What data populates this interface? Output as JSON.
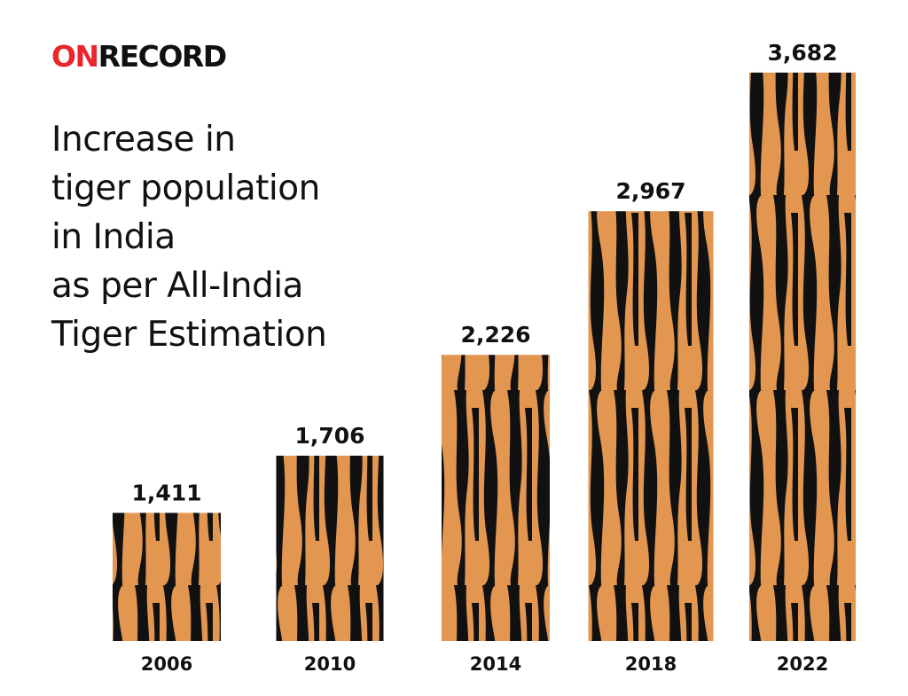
{
  "brand": {
    "accent": "ON",
    "rest": "RECORD"
  },
  "chart_data": {
    "type": "bar",
    "title": "Increase in\ntiger population\nin India\nas per All-India\nTiger Estimation",
    "categories": [
      "2006",
      "2010",
      "2014",
      "2018",
      "2022"
    ],
    "values": [
      1411,
      1706,
      2226,
      2967,
      3682
    ],
    "value_labels": [
      "1,411",
      "1,706",
      "2,226",
      "2,967",
      "3,682"
    ],
    "color": "#e39650",
    "ylim": [
      750,
      3750
    ]
  }
}
